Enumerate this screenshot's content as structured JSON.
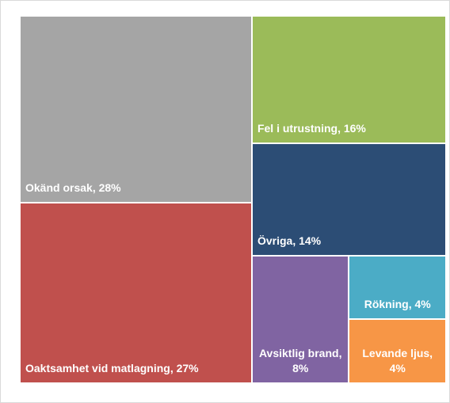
{
  "chart_data": {
    "type": "treemap",
    "categories": [
      "Okänd orsak, 28%",
      "Oaktsamhet vid matlagning, 27%",
      "Fel i utrustning, 16%",
      "Övriga, 14%",
      "Avsiktlig brand, 8%",
      "Rökning, 4%",
      "Levande ljus, 4%"
    ],
    "values": [
      28,
      27,
      16,
      14,
      8,
      4,
      4
    ],
    "colors": [
      "#a5a5a5",
      "#c0504d",
      "#9bbb59",
      "#2c4d75",
      "#8064a2",
      "#4bacc6",
      "#f79646"
    ]
  }
}
